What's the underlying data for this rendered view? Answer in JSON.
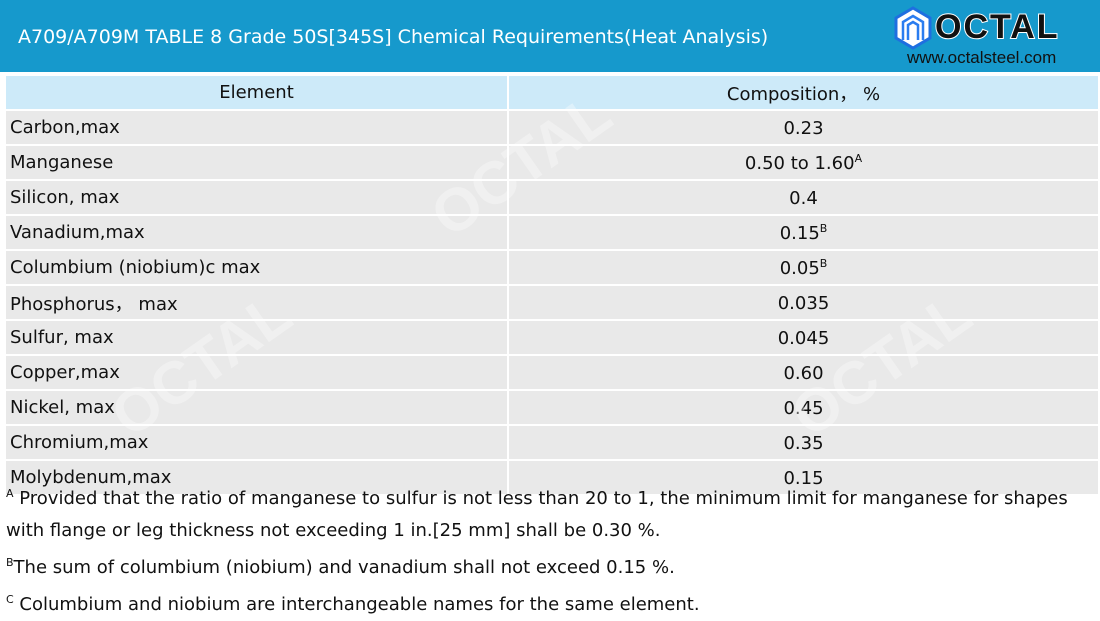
{
  "header": {
    "title": "A709/A709M TABLE 8 Grade 50S[345S] Chemical Requirements(Heat Analysis)",
    "logo": {
      "name": "OCTAL",
      "url": "www.octalsteel.com",
      "icon": "hexagon-logo-icon",
      "color": "#1699cc"
    }
  },
  "table": {
    "columns": [
      "Element",
      "Composition， %"
    ],
    "rows": [
      {
        "element": "Carbon,max",
        "value": "0.23",
        "note": ""
      },
      {
        "element": "Manganese",
        "value": "0.50 to 1.60",
        "note": "A"
      },
      {
        "element": "Silicon, max",
        "value": "0.4",
        "note": ""
      },
      {
        "element": "Vanadium,max",
        "value": "0.15",
        "note": "B"
      },
      {
        "element": "Columbium (niobium)c max",
        "value": "0.05",
        "note": "B"
      },
      {
        "element": "Phosphorus， max",
        "value": "0.035",
        "note": ""
      },
      {
        "element": "Sulfur, max",
        "value": "0.045",
        "note": ""
      },
      {
        "element": "Copper,max",
        "value": "0.60",
        "note": ""
      },
      {
        "element": "Nickel, max",
        "value": "0.45",
        "note": ""
      },
      {
        "element": "Chromium,max",
        "value": "0.35",
        "note": ""
      },
      {
        "element": "Molybdenum,max",
        "value": "0.15",
        "note": ""
      }
    ]
  },
  "notes": [
    {
      "mark": "A",
      "text": " Provided that the ratio of manganese to sulfur is not less than 20 to 1, the minimum limit for manganese for shapes with flange or leg thickness not exceeding 1 in.[25 mm] shall be 0.30 %."
    },
    {
      "mark": "B",
      "text": "The sum of columbium (niobium) and vanadium shall not exceed 0.15 %."
    },
    {
      "mark": "C",
      "text": " Columbium and niobium are interchangeable names for the same element."
    }
  ]
}
